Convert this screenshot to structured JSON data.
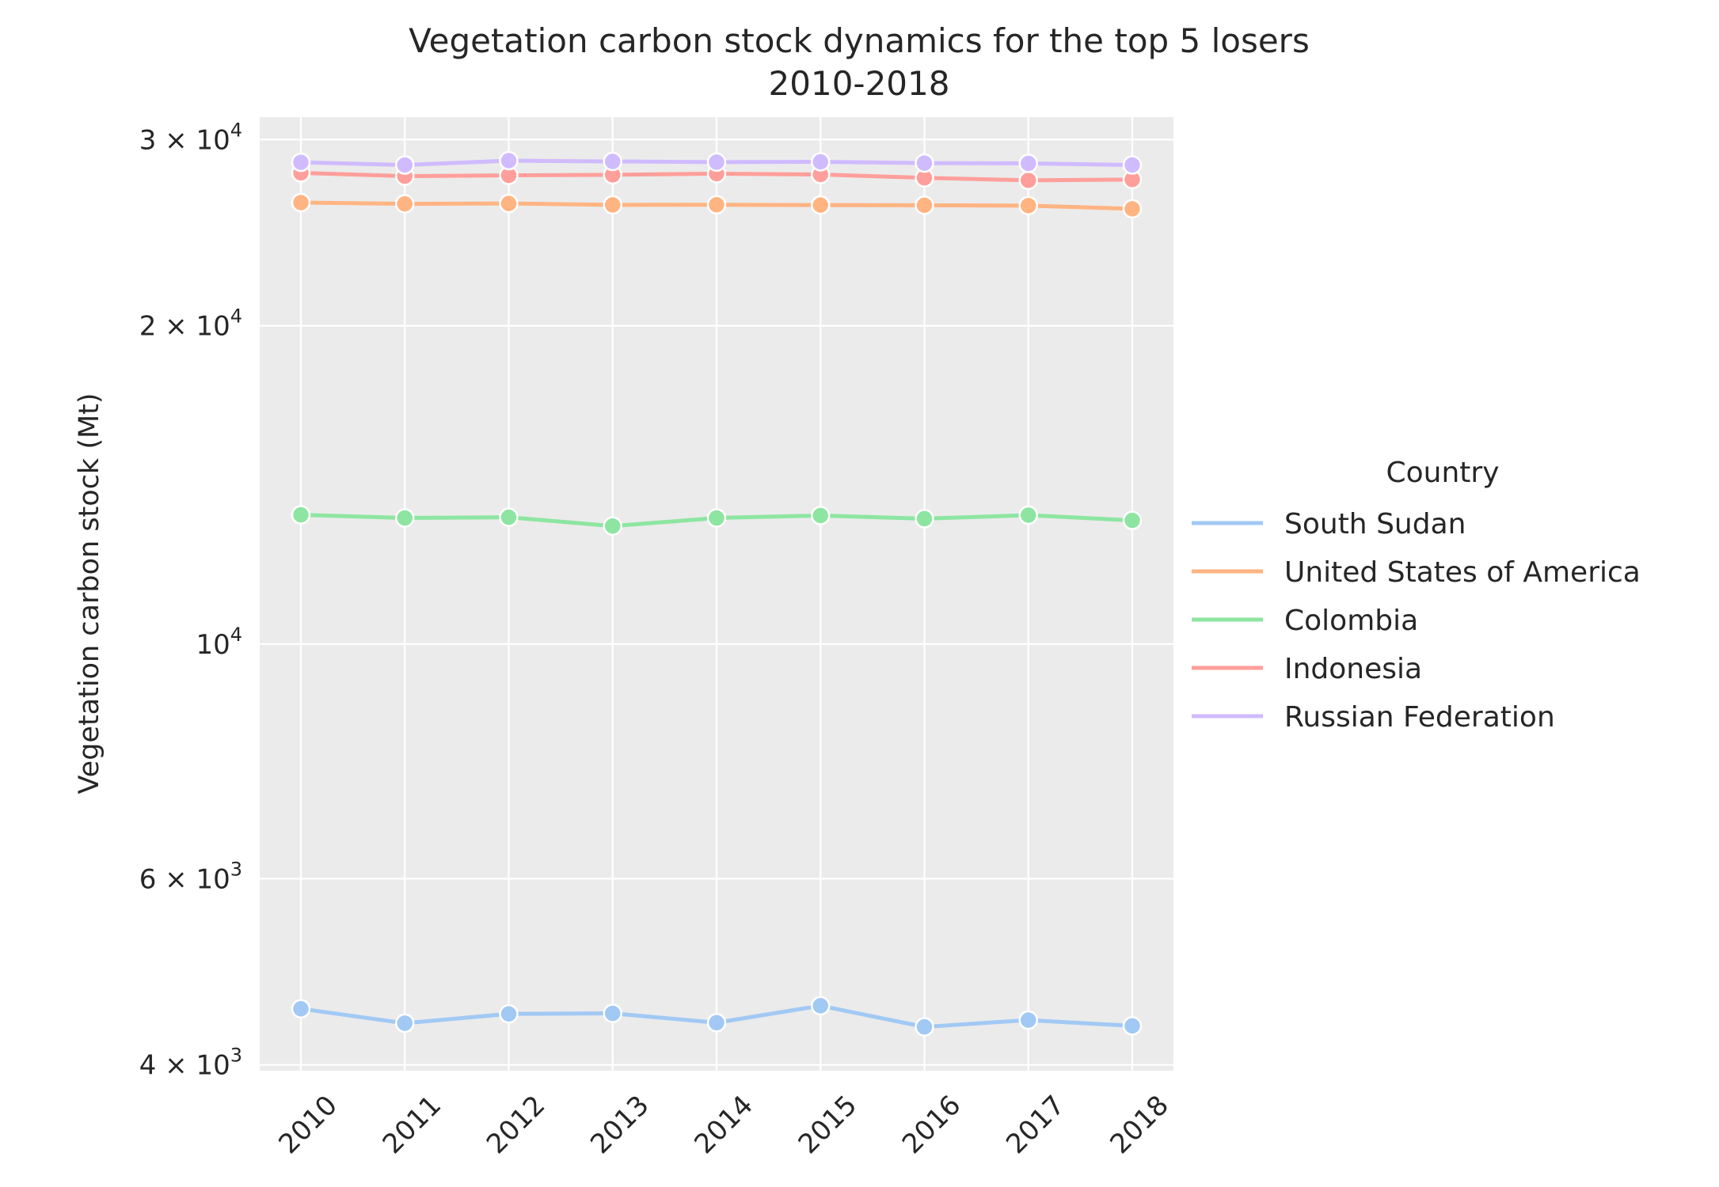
{
  "chart_data": {
    "type": "line",
    "title_lines": [
      "Vegetation carbon stock dynamics for the top 5 losers",
      "2010-2018"
    ],
    "xlabel": "",
    "ylabel": "Vegetation carbon stock (Mt)",
    "y_scale": "log",
    "ylim": [
      3950,
      31500
    ],
    "grid": true,
    "legend_position": "right",
    "legend_title": "Country",
    "x": [
      2010,
      2011,
      2012,
      2013,
      2014,
      2015,
      2016,
      2017,
      2018
    ],
    "x_tick_labels": [
      "2010",
      "2011",
      "2012",
      "2013",
      "2014",
      "2015",
      "2016",
      "2017",
      "2018"
    ],
    "y_ticks": [
      {
        "value": 4000,
        "label_base": "4 × 10",
        "label_exp": "3"
      },
      {
        "value": 6000,
        "label_base": "6 × 10",
        "label_exp": "3"
      },
      {
        "value": 10000,
        "label_base": "10",
        "label_exp": "4"
      },
      {
        "value": 20000,
        "label_base": "2 × 10",
        "label_exp": "4"
      },
      {
        "value": 30000,
        "label_base": "3 × 10",
        "label_exp": "4"
      }
    ],
    "series": [
      {
        "name": "South Sudan",
        "color": "#a1c9f4",
        "values": [
          4520,
          4380,
          4470,
          4475,
          4385,
          4550,
          4345,
          4410,
          4355
        ]
      },
      {
        "name": "United States of America",
        "color": "#ffb482",
        "values": [
          26150,
          26080,
          26100,
          26020,
          26030,
          26010,
          26000,
          25980,
          25800
        ]
      },
      {
        "name": "Colombia",
        "color": "#8de5a1",
        "values": [
          13250,
          13160,
          13180,
          12930,
          13160,
          13230,
          13140,
          13240,
          13090
        ]
      },
      {
        "name": "Indonesia",
        "color": "#ff9f9b",
        "values": [
          27900,
          27700,
          27750,
          27780,
          27850,
          27800,
          27600,
          27450,
          27500
        ]
      },
      {
        "name": "Russian Federation",
        "color": "#d0bbff",
        "values": [
          28550,
          28380,
          28650,
          28600,
          28560,
          28580,
          28500,
          28480,
          28380
        ]
      }
    ]
  }
}
